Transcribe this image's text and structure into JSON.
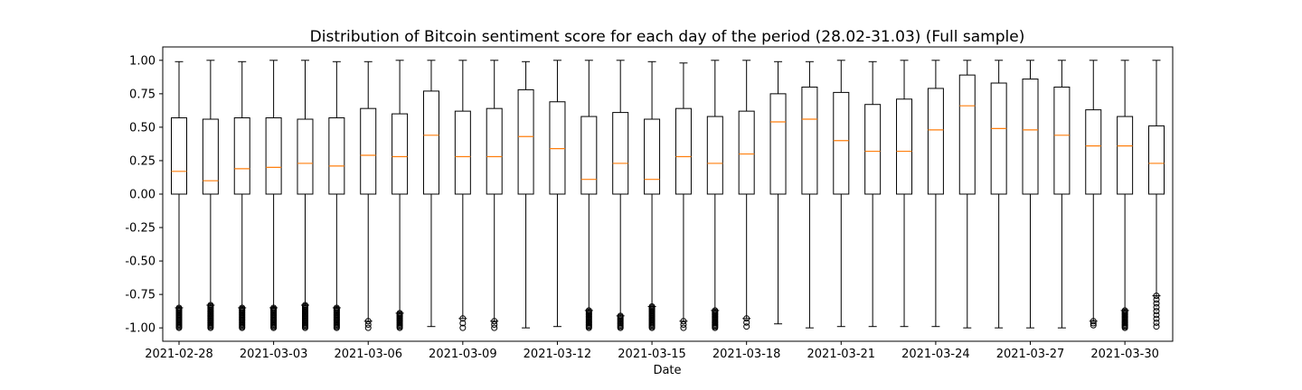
{
  "chart_data": {
    "type": "box",
    "title": "Distribution of Bitcoin sentiment score for each day of the period (28.02-31.03) (Full sample)",
    "xlabel": "Date",
    "ylabel": "",
    "ylim": [
      -1.1,
      1.1
    ],
    "yticks": [
      "1.00",
      "0.75",
      "0.50",
      "0.25",
      "0.00",
      "-0.25",
      "-0.50",
      "-0.75",
      "-1.00"
    ],
    "ytick_values": [
      1.0,
      0.75,
      0.5,
      0.25,
      0.0,
      -0.25,
      -0.5,
      -0.75,
      -1.0
    ],
    "xtick_labels": [
      {
        "index": 0,
        "label": "2021-02-28"
      },
      {
        "index": 3,
        "label": "2021-03-03"
      },
      {
        "index": 6,
        "label": "2021-03-06"
      },
      {
        "index": 9,
        "label": "2021-03-09"
      },
      {
        "index": 12,
        "label": "2021-03-12"
      },
      {
        "index": 15,
        "label": "2021-03-15"
      },
      {
        "index": 18,
        "label": "2021-03-18"
      },
      {
        "index": 21,
        "label": "2021-03-21"
      },
      {
        "index": 24,
        "label": "2021-03-24"
      },
      {
        "index": 27,
        "label": "2021-03-27"
      },
      {
        "index": 30,
        "label": "2021-03-30"
      }
    ],
    "box_color": "#000000",
    "median_color": "#ff7f0e",
    "grid": false,
    "boxes": [
      {
        "date": "2021-02-28",
        "whisker_low": -0.85,
        "q1": 0.0,
        "median": 0.17,
        "q3": 0.57,
        "whisker_high": 0.99,
        "outliers_low": -1.0,
        "outliers_high": -0.85,
        "outlier_style": "dense"
      },
      {
        "date": "2021-03-01",
        "whisker_low": -0.83,
        "q1": 0.0,
        "median": 0.1,
        "q3": 0.56,
        "whisker_high": 1.0,
        "outliers_low": -1.0,
        "outliers_high": -0.83,
        "outlier_style": "dense"
      },
      {
        "date": "2021-03-02",
        "whisker_low": -0.85,
        "q1": 0.0,
        "median": 0.19,
        "q3": 0.57,
        "whisker_high": 0.99,
        "outliers_low": -1.0,
        "outliers_high": -0.85,
        "outlier_style": "dense"
      },
      {
        "date": "2021-03-03",
        "whisker_low": -0.85,
        "q1": 0.0,
        "median": 0.2,
        "q3": 0.57,
        "whisker_high": 1.0,
        "outliers_low": -1.0,
        "outliers_high": -0.85,
        "outlier_style": "dense"
      },
      {
        "date": "2021-03-04",
        "whisker_low": -0.83,
        "q1": 0.0,
        "median": 0.23,
        "q3": 0.56,
        "whisker_high": 1.0,
        "outliers_low": -1.0,
        "outliers_high": -0.83,
        "outlier_style": "dense"
      },
      {
        "date": "2021-03-05",
        "whisker_low": -0.85,
        "q1": 0.0,
        "median": 0.21,
        "q3": 0.57,
        "whisker_high": 0.99,
        "outliers_low": -1.0,
        "outliers_high": -0.85,
        "outlier_style": "dense"
      },
      {
        "date": "2021-03-06",
        "whisker_low": -0.95,
        "q1": 0.0,
        "median": 0.29,
        "q3": 0.64,
        "whisker_high": 0.99,
        "outliers_low": -1.0,
        "outliers_high": -0.95,
        "outlier_style": "sparse"
      },
      {
        "date": "2021-03-07",
        "whisker_low": -0.89,
        "q1": 0.0,
        "median": 0.28,
        "q3": 0.6,
        "whisker_high": 1.0,
        "outliers_low": -1.0,
        "outliers_high": -0.89,
        "outlier_style": "dense"
      },
      {
        "date": "2021-03-08",
        "whisker_low": -0.99,
        "q1": 0.0,
        "median": 0.44,
        "q3": 0.77,
        "whisker_high": 1.0,
        "outliers_low": null,
        "outliers_high": null,
        "outlier_style": "none"
      },
      {
        "date": "2021-03-09",
        "whisker_low": -0.93,
        "q1": 0.0,
        "median": 0.28,
        "q3": 0.62,
        "whisker_high": 1.0,
        "outliers_low": -1.0,
        "outliers_high": -0.93,
        "outlier_style": "sparse"
      },
      {
        "date": "2021-03-10",
        "whisker_low": -0.95,
        "q1": 0.0,
        "median": 0.28,
        "q3": 0.64,
        "whisker_high": 1.0,
        "outliers_low": -1.0,
        "outliers_high": -0.95,
        "outlier_style": "sparse"
      },
      {
        "date": "2021-03-11",
        "whisker_low": -1.0,
        "q1": 0.0,
        "median": 0.43,
        "q3": 0.78,
        "whisker_high": 0.99,
        "outliers_low": null,
        "outliers_high": null,
        "outlier_style": "none"
      },
      {
        "date": "2021-03-12",
        "whisker_low": -0.99,
        "q1": 0.0,
        "median": 0.34,
        "q3": 0.69,
        "whisker_high": 1.0,
        "outliers_low": null,
        "outliers_high": null,
        "outlier_style": "none"
      },
      {
        "date": "2021-03-13",
        "whisker_low": -0.87,
        "q1": 0.0,
        "median": 0.11,
        "q3": 0.58,
        "whisker_high": 1.0,
        "outliers_low": -1.0,
        "outliers_high": -0.87,
        "outlier_style": "dense"
      },
      {
        "date": "2021-03-14",
        "whisker_low": -0.91,
        "q1": 0.0,
        "median": 0.23,
        "q3": 0.61,
        "whisker_high": 1.0,
        "outliers_low": -1.0,
        "outliers_high": -0.91,
        "outlier_style": "dense"
      },
      {
        "date": "2021-03-15",
        "whisker_low": -0.84,
        "q1": 0.0,
        "median": 0.11,
        "q3": 0.56,
        "whisker_high": 0.99,
        "outliers_low": -1.0,
        "outliers_high": -0.84,
        "outlier_style": "dense"
      },
      {
        "date": "2021-03-16",
        "whisker_low": -0.95,
        "q1": 0.0,
        "median": 0.28,
        "q3": 0.64,
        "whisker_high": 0.98,
        "outliers_low": -1.0,
        "outliers_high": -0.95,
        "outlier_style": "sparse"
      },
      {
        "date": "2021-03-17",
        "whisker_low": -0.87,
        "q1": 0.0,
        "median": 0.23,
        "q3": 0.58,
        "whisker_high": 1.0,
        "outliers_low": -1.0,
        "outliers_high": -0.87,
        "outlier_style": "dense"
      },
      {
        "date": "2021-03-18",
        "whisker_low": -0.93,
        "q1": 0.0,
        "median": 0.3,
        "q3": 0.62,
        "whisker_high": 1.0,
        "outliers_low": -0.99,
        "outliers_high": -0.93,
        "outlier_style": "sparse"
      },
      {
        "date": "2021-03-19",
        "whisker_low": -0.97,
        "q1": 0.0,
        "median": 0.54,
        "q3": 0.75,
        "whisker_high": 0.99,
        "outliers_low": null,
        "outliers_high": null,
        "outlier_style": "none"
      },
      {
        "date": "2021-03-20",
        "whisker_low": -1.0,
        "q1": 0.0,
        "median": 0.56,
        "q3": 0.8,
        "whisker_high": 0.99,
        "outliers_low": null,
        "outliers_high": null,
        "outlier_style": "none"
      },
      {
        "date": "2021-03-21",
        "whisker_low": -0.99,
        "q1": 0.0,
        "median": 0.4,
        "q3": 0.76,
        "whisker_high": 1.0,
        "outliers_low": null,
        "outliers_high": null,
        "outlier_style": "none"
      },
      {
        "date": "2021-03-22",
        "whisker_low": -0.99,
        "q1": 0.0,
        "median": 0.32,
        "q3": 0.67,
        "whisker_high": 0.99,
        "outliers_low": null,
        "outliers_high": null,
        "outlier_style": "none"
      },
      {
        "date": "2021-03-23",
        "whisker_low": -0.99,
        "q1": 0.0,
        "median": 0.32,
        "q3": 0.71,
        "whisker_high": 1.0,
        "outliers_low": null,
        "outliers_high": null,
        "outlier_style": "none"
      },
      {
        "date": "2021-03-24",
        "whisker_low": -0.99,
        "q1": 0.0,
        "median": 0.48,
        "q3": 0.79,
        "whisker_high": 1.0,
        "outliers_low": null,
        "outliers_high": null,
        "outlier_style": "none"
      },
      {
        "date": "2021-03-25",
        "whisker_low": -1.0,
        "q1": 0.0,
        "median": 0.66,
        "q3": 0.89,
        "whisker_high": 1.0,
        "outliers_low": null,
        "outliers_high": null,
        "outlier_style": "none"
      },
      {
        "date": "2021-03-26",
        "whisker_low": -1.0,
        "q1": 0.0,
        "median": 0.49,
        "q3": 0.83,
        "whisker_high": 1.0,
        "outliers_low": null,
        "outliers_high": null,
        "outlier_style": "none"
      },
      {
        "date": "2021-03-27",
        "whisker_low": -1.0,
        "q1": 0.0,
        "median": 0.48,
        "q3": 0.86,
        "whisker_high": 1.0,
        "outliers_low": null,
        "outliers_high": null,
        "outlier_style": "none"
      },
      {
        "date": "2021-03-28",
        "whisker_low": -1.0,
        "q1": 0.0,
        "median": 0.44,
        "q3": 0.8,
        "whisker_high": 1.0,
        "outliers_low": null,
        "outliers_high": null,
        "outlier_style": "none"
      },
      {
        "date": "2021-03-29",
        "whisker_low": -0.95,
        "q1": 0.0,
        "median": 0.36,
        "q3": 0.63,
        "whisker_high": 1.0,
        "outliers_low": -0.98,
        "outliers_high": -0.95,
        "outlier_style": "sparse"
      },
      {
        "date": "2021-03-30",
        "whisker_low": -0.87,
        "q1": 0.0,
        "median": 0.36,
        "q3": 0.58,
        "whisker_high": 1.0,
        "outliers_low": -1.0,
        "outliers_high": -0.87,
        "outlier_style": "dense"
      },
      {
        "date": "2021-03-31",
        "whisker_low": -0.76,
        "q1": 0.0,
        "median": 0.23,
        "q3": 0.51,
        "whisker_high": 1.0,
        "outliers_low": -0.99,
        "outliers_high": -0.76,
        "outlier_style": "spread"
      }
    ]
  }
}
